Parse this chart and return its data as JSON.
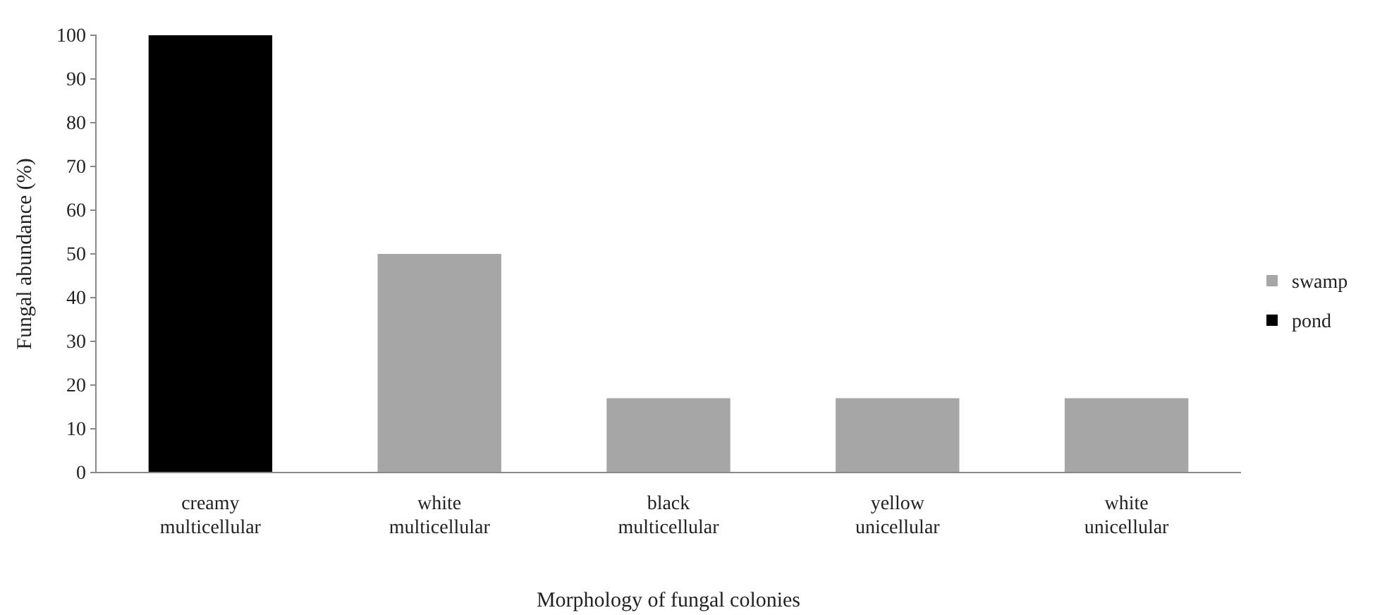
{
  "chart_data": {
    "type": "bar",
    "xlabel": "Morphology of fungal colonies",
    "ylabel": "Fungal abundance (%)",
    "categories": [
      "creamy multicellular",
      "white multicellular",
      "black multicellular",
      "yellow unicellular",
      "white unicellular"
    ],
    "series": [
      {
        "name": "swamp",
        "color": "#a6a6a6",
        "values": [
          null,
          50,
          17,
          17,
          17
        ]
      },
      {
        "name": "pond",
        "color": "#000000",
        "values": [
          100,
          null,
          null,
          null,
          null
        ]
      }
    ],
    "ylim": [
      0,
      100
    ],
    "yticks": [
      0,
      10,
      20,
      30,
      40,
      50,
      60,
      70,
      80,
      90,
      100
    ],
    "grid": false,
    "legend": "right"
  }
}
